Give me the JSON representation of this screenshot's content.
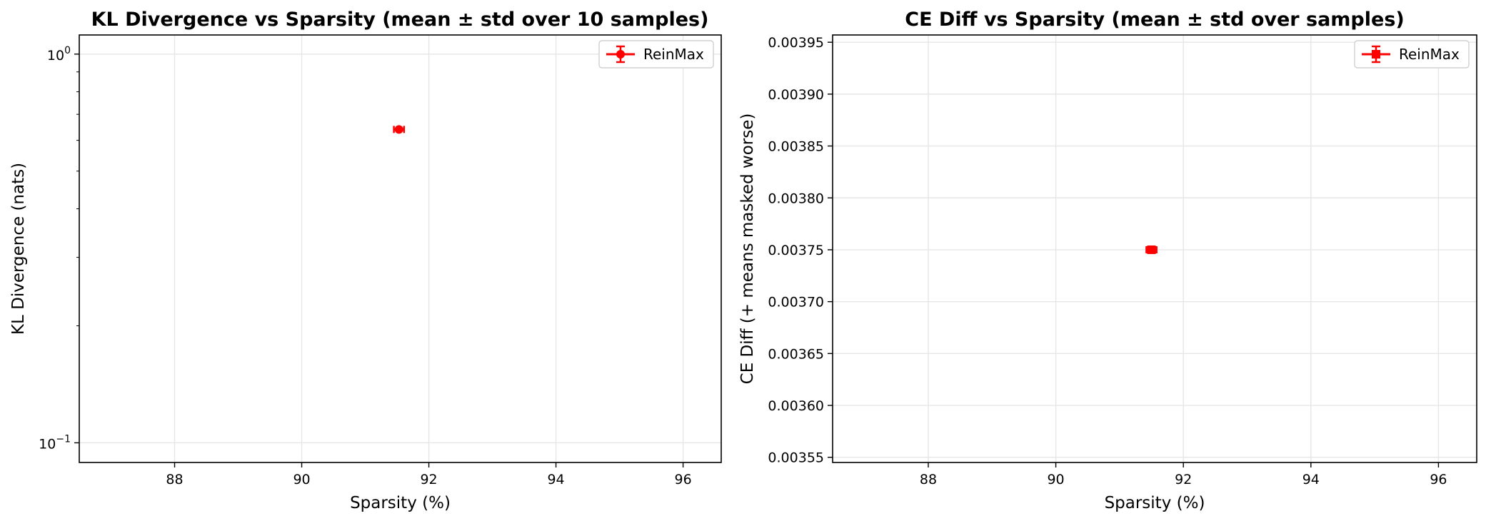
{
  "chart_data": [
    {
      "type": "scatter",
      "title": "KL Divergence vs Sparsity (mean ± std over 10 samples)",
      "xlabel": "Sparsity (%)",
      "ylabel": "KL Divergence (nats)",
      "yscale": "log",
      "xlim": [
        86.5,
        96.6
      ],
      "ylim": [
        0.089,
        1.12
      ],
      "xticks": [
        88,
        90,
        92,
        94,
        96
      ],
      "yticks": [
        {
          "value": 1,
          "base": "10",
          "exp": "0"
        },
        {
          "value": 0.1,
          "base": "10",
          "exp": "−1"
        }
      ],
      "grid": true,
      "legend_position": "top-right",
      "series": [
        {
          "name": "ReinMax",
          "marker": "circle",
          "color": "#ff0000",
          "points": [
            {
              "x": 91.53,
              "y": 0.64,
              "xerr": 0.08,
              "yerr": 0.008
            }
          ]
        }
      ]
    },
    {
      "type": "scatter",
      "title": "CE Diff vs Sparsity (mean ± std over samples)",
      "xlabel": "Sparsity (%)",
      "ylabel": "CE Diff (+ means masked worse)",
      "yscale": "linear",
      "xlim": [
        86.5,
        96.6
      ],
      "ylim": [
        0.003545,
        0.003957
      ],
      "xticks": [
        88,
        90,
        92,
        94,
        96
      ],
      "yticks": [
        {
          "value": 0.00355,
          "label": "0.00355"
        },
        {
          "value": 0.0036,
          "label": "0.00360"
        },
        {
          "value": 0.00365,
          "label": "0.00365"
        },
        {
          "value": 0.0037,
          "label": "0.00370"
        },
        {
          "value": 0.00375,
          "label": "0.00375"
        },
        {
          "value": 0.0038,
          "label": "0.00380"
        },
        {
          "value": 0.00385,
          "label": "0.00385"
        },
        {
          "value": 0.0039,
          "label": "0.00390"
        },
        {
          "value": 0.00395,
          "label": "0.00395"
        }
      ],
      "grid": true,
      "legend_position": "top-right",
      "series": [
        {
          "name": "ReinMax",
          "marker": "square",
          "color": "#ff0000",
          "points": [
            {
              "x": 91.5,
              "y": 0.00375,
              "xerr": 0.08,
              "yerr": 4e-06
            }
          ]
        }
      ]
    }
  ]
}
